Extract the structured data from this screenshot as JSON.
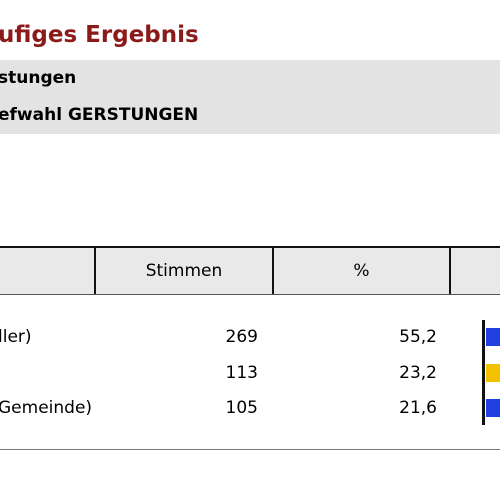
{
  "heading": {
    "title": "ufiges Ergebnis"
  },
  "info": {
    "line1": "stungen",
    "line2": "efwahl GERSTUNGEN"
  },
  "table": {
    "headers": [
      "",
      "Stimmen",
      "%",
      ""
    ],
    "rows": [
      {
        "name": "ller)",
        "votes": "269",
        "percent": "55,2",
        "color": "#1f3fe0"
      },
      {
        "name": "",
        "votes": "113",
        "percent": "23,2",
        "color": "#f2c200"
      },
      {
        "name": "Gemeinde)",
        "votes": "105",
        "percent": "21,6",
        "color": "#1f3fe0"
      }
    ]
  }
}
